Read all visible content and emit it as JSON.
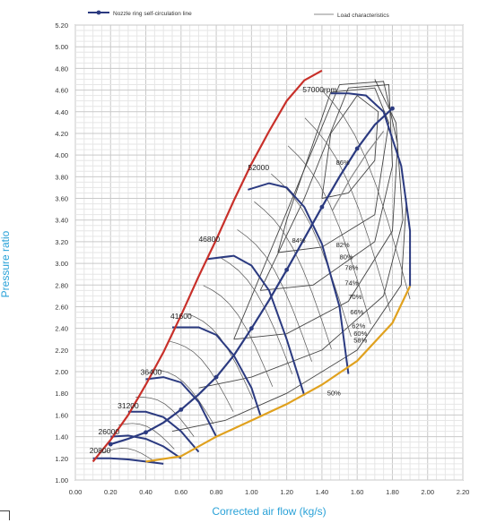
{
  "chart_data": {
    "type": "line",
    "xlabel": "Corrected air flow (kg/s)",
    "ylabel": "Pressure ratio",
    "xlim": [
      0,
      2.2
    ],
    "ylim": [
      1.0,
      5.2
    ],
    "grid": true,
    "x_ticks": [
      "0.00",
      "0.20",
      "0.40",
      "0.60",
      "0.80",
      "1.00",
      "1.20",
      "1.40",
      "1.60",
      "1.80",
      "2.00",
      "2.20"
    ],
    "y_ticks": [
      "1.00",
      "1.20",
      "1.40",
      "1.60",
      "1.80",
      "2.00",
      "2.20",
      "2.40",
      "2.60",
      "2.80",
      "3.00",
      "3.20",
      "3.40",
      "3.60",
      "3.80",
      "4.00",
      "4.20",
      "4.40",
      "4.60",
      "4.80",
      "5.00",
      "5.20"
    ],
    "legend": [
      {
        "label": "Nozzle ring self-circulation line",
        "color": "#2b3a80"
      },
      {
        "label": "Load characteristics",
        "color": "#888888"
      }
    ],
    "speed_labels": [
      {
        "text": "57000rpm",
        "x": 1.29,
        "y": 4.58
      },
      {
        "text": "52000",
        "x": 0.98,
        "y": 3.86
      },
      {
        "text": "46800",
        "x": 0.7,
        "y": 3.2
      },
      {
        "text": "41600",
        "x": 0.54,
        "y": 2.49
      },
      {
        "text": "36400",
        "x": 0.37,
        "y": 1.97
      },
      {
        "text": "31200",
        "x": 0.24,
        "y": 1.66
      },
      {
        "text": "26000",
        "x": 0.13,
        "y": 1.42
      },
      {
        "text": "20800",
        "x": 0.08,
        "y": 1.25
      }
    ],
    "efficiency_labels": [
      {
        "text": "86%",
        "x": 1.48,
        "y": 3.91
      },
      {
        "text": "84%",
        "x": 1.23,
        "y": 3.19
      },
      {
        "text": "82%",
        "x": 1.48,
        "y": 3.15
      },
      {
        "text": "80%",
        "x": 1.5,
        "y": 3.04
      },
      {
        "text": "78%",
        "x": 1.53,
        "y": 2.94
      },
      {
        "text": "74%",
        "x": 1.53,
        "y": 2.8
      },
      {
        "text": "70%",
        "x": 1.55,
        "y": 2.67
      },
      {
        "text": "66%",
        "x": 1.56,
        "y": 2.53
      },
      {
        "text": "62%",
        "x": 1.57,
        "y": 2.4
      },
      {
        "text": "60%",
        "x": 1.58,
        "y": 2.33
      },
      {
        "text": "58%",
        "x": 1.58,
        "y": 2.27
      },
      {
        "text": "50%",
        "x": 1.43,
        "y": 1.78
      }
    ],
    "series": [
      {
        "name": "Surge line",
        "color": "#c8302a",
        "x": [
          0.1,
          0.2,
          0.3,
          0.4,
          0.5,
          0.6,
          0.7,
          0.8,
          0.9,
          1.0,
          1.1,
          1.2,
          1.3,
          1.4
        ],
        "y": [
          1.17,
          1.37,
          1.6,
          1.88,
          2.18,
          2.52,
          2.88,
          3.22,
          3.58,
          3.92,
          4.22,
          4.5,
          4.69,
          4.78
        ]
      },
      {
        "name": "Choke line",
        "color": "#e0a11e",
        "x": [
          0.4,
          0.6,
          0.8,
          1.0,
          1.2,
          1.4,
          1.6,
          1.8,
          1.9
        ],
        "y": [
          1.17,
          1.22,
          1.4,
          1.55,
          1.7,
          1.88,
          2.1,
          2.45,
          2.79
        ]
      },
      {
        "name": "Nozzle ring self-circulation line",
        "color": "#2b3a80",
        "x": [
          0.2,
          0.3,
          0.4,
          0.5,
          0.6,
          0.7,
          0.8,
          0.9,
          1.0,
          1.1,
          1.2,
          1.3,
          1.4,
          1.5,
          1.6,
          1.7,
          1.8
        ],
        "y": [
          1.33,
          1.38,
          1.44,
          1.53,
          1.65,
          1.79,
          1.95,
          2.15,
          2.4,
          2.66,
          2.94,
          3.23,
          3.52,
          3.8,
          4.06,
          4.28,
          4.43
        ]
      },
      {
        "name": "Load characteristics",
        "color": "#888888",
        "x": [
          1.46,
          1.56,
          1.66,
          1.75
        ],
        "y": [
          3.49,
          3.78,
          4.03,
          4.22
        ]
      }
    ],
    "speed_lines": [
      {
        "rpm": "20800",
        "x": [
          0.1,
          0.2,
          0.3,
          0.4,
          0.5
        ],
        "y": [
          1.2,
          1.2,
          1.19,
          1.17,
          1.15
        ]
      },
      {
        "rpm": "26000",
        "x": [
          0.2,
          0.3,
          0.4,
          0.5,
          0.6
        ],
        "y": [
          1.4,
          1.41,
          1.38,
          1.31,
          1.2
        ]
      },
      {
        "rpm": "31200",
        "x": [
          0.3,
          0.4,
          0.5,
          0.6,
          0.7
        ],
        "y": [
          1.63,
          1.63,
          1.58,
          1.45,
          1.26
        ]
      },
      {
        "rpm": "36400",
        "x": [
          0.4,
          0.5,
          0.6,
          0.7,
          0.8
        ],
        "y": [
          1.93,
          1.95,
          1.9,
          1.72,
          1.4
        ]
      },
      {
        "rpm": "41600",
        "x": [
          0.55,
          0.7,
          0.8,
          0.9,
          1.0,
          1.05
        ],
        "y": [
          2.41,
          2.41,
          2.34,
          2.15,
          1.85,
          1.6
        ]
      },
      {
        "rpm": "46800",
        "x": [
          0.75,
          0.9,
          1.0,
          1.1,
          1.2,
          1.3
        ],
        "y": [
          3.04,
          3.07,
          2.98,
          2.75,
          2.3,
          1.78
        ]
      },
      {
        "rpm": "52000",
        "x": [
          0.98,
          1.1,
          1.2,
          1.3,
          1.4,
          1.5,
          1.55
        ],
        "y": [
          3.68,
          3.74,
          3.7,
          3.52,
          3.18,
          2.6,
          1.98
        ]
      },
      {
        "rpm": "57000",
        "x": [
          1.45,
          1.55,
          1.65,
          1.75,
          1.85,
          1.9,
          1.9
        ],
        "y": [
          4.57,
          4.57,
          4.55,
          4.4,
          3.9,
          3.3,
          2.79
        ]
      }
    ],
    "efficiency_islands": [
      {
        "label": "86%",
        "x": [
          1.4,
          1.55,
          1.7,
          1.72,
          1.6,
          1.45,
          1.4
        ],
        "y": [
          3.6,
          3.65,
          3.95,
          4.4,
          4.55,
          4.2,
          3.6
        ]
      },
      {
        "label": "84%",
        "x": [
          1.15,
          1.4,
          1.7,
          1.78,
          1.7,
          1.45,
          1.2,
          1.15
        ],
        "y": [
          3.1,
          3.15,
          3.45,
          4.3,
          4.62,
          4.58,
          3.4,
          3.1
        ]
      },
      {
        "label": "80%",
        "x": [
          1.05,
          1.35,
          1.7,
          1.8,
          1.78,
          1.55,
          1.3,
          1.05
        ],
        "y": [
          2.75,
          2.8,
          3.2,
          3.9,
          4.65,
          4.62,
          3.6,
          2.75
        ]
      },
      {
        "label": "74%",
        "x": [
          0.9,
          1.2,
          1.55,
          1.8,
          1.83,
          1.75,
          1.5,
          0.9
        ],
        "y": [
          2.3,
          2.35,
          2.65,
          3.3,
          4.1,
          4.68,
          4.65,
          2.3
        ]
      },
      {
        "label": "66%",
        "x": [
          0.7,
          1.0,
          1.4,
          1.75,
          1.86,
          1.82,
          1.7
        ],
        "y": [
          1.85,
          1.95,
          2.2,
          2.7,
          3.4,
          4.3,
          4.7
        ]
      },
      {
        "label": "58%",
        "x": [
          0.55,
          0.85,
          1.2,
          1.6,
          1.85,
          1.88
        ],
        "y": [
          1.45,
          1.55,
          1.8,
          2.2,
          2.8,
          3.6
        ]
      }
    ]
  }
}
